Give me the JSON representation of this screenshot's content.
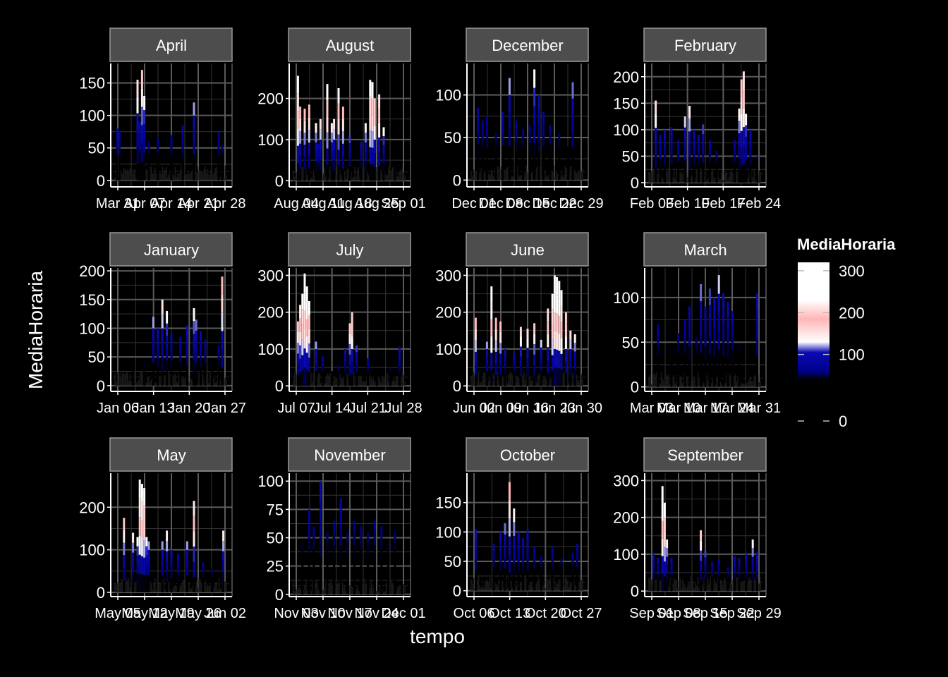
{
  "chart_data": {
    "type": "line",
    "title": "",
    "xlabel": "tempo",
    "ylabel": "MediaHoraria",
    "legend": {
      "title": "MediaHoraria",
      "position": "right",
      "ticks": [
        0,
        100,
        200,
        300
      ],
      "range": [
        0,
        320
      ],
      "colors": [
        {
          "v": 0,
          "c": "#000000"
        },
        {
          "v": 40,
          "c": "#000000"
        },
        {
          "v": 60,
          "c": "#00008b"
        },
        {
          "v": 105,
          "c": "#0a0ab4"
        },
        {
          "v": 130,
          "c": "#ffffff"
        },
        {
          "v": 185,
          "c": "#ffb6b6"
        },
        {
          "v": 230,
          "c": "#ffffff"
        },
        {
          "v": 320,
          "c": "#ffffff"
        }
      ]
    },
    "grid": true,
    "panels": [
      {
        "name": "April",
        "ylim": [
          -10,
          180
        ],
        "yticks": [
          0,
          50,
          100,
          150
        ],
        "xticks": [
          "Mar 31",
          "Apr 07",
          "Apr 14",
          "Apr 21",
          "Apr 28"
        ],
        "spikes": [
          [
            0.02,
            80
          ],
          [
            0.04,
            75
          ],
          [
            0.2,
            155
          ],
          [
            0.22,
            90
          ],
          [
            0.24,
            170
          ],
          [
            0.26,
            130
          ],
          [
            0.3,
            60
          ],
          [
            0.38,
            65
          ],
          [
            0.5,
            70
          ],
          [
            0.6,
            85
          ],
          [
            0.7,
            120
          ],
          [
            0.92,
            75
          ],
          [
            0.95,
            55
          ]
        ]
      },
      {
        "name": "August",
        "ylim": [
          -15,
          285
        ],
        "yticks": [
          0,
          100,
          200
        ],
        "xticks": [
          "Aug 04",
          "Aug 11",
          "Aug 18",
          "Aug 25",
          "Sep 01"
        ],
        "spikes": [
          [
            0.04,
            255
          ],
          [
            0.06,
            180
          ],
          [
            0.1,
            175
          ],
          [
            0.14,
            185
          ],
          [
            0.2,
            140
          ],
          [
            0.22,
            90
          ],
          [
            0.24,
            150
          ],
          [
            0.3,
            235
          ],
          [
            0.34,
            140
          ],
          [
            0.36,
            150
          ],
          [
            0.4,
            225
          ],
          [
            0.44,
            180
          ],
          [
            0.5,
            110
          ],
          [
            0.6,
            95
          ],
          [
            0.64,
            140
          ],
          [
            0.68,
            245
          ],
          [
            0.7,
            240
          ],
          [
            0.72,
            200
          ],
          [
            0.76,
            210
          ],
          [
            0.8,
            130
          ],
          [
            0.9,
            40
          ]
        ]
      },
      {
        "name": "December",
        "ylim": [
          -8,
          137
        ],
        "yticks": [
          0,
          50,
          100
        ],
        "xticks": [
          "Dec 01",
          "Dec 08",
          "Dec 15",
          "Dec 22",
          "Dec 29"
        ],
        "spikes": [
          [
            0.06,
            85
          ],
          [
            0.1,
            70
          ],
          [
            0.14,
            75
          ],
          [
            0.22,
            55
          ],
          [
            0.28,
            80
          ],
          [
            0.34,
            120
          ],
          [
            0.4,
            70
          ],
          [
            0.46,
            60
          ],
          [
            0.52,
            65
          ],
          [
            0.56,
            130
          ],
          [
            0.6,
            100
          ],
          [
            0.64,
            80
          ],
          [
            0.7,
            65
          ],
          [
            0.78,
            55
          ],
          [
            0.86,
            40
          ],
          [
            0.9,
            115
          ]
        ]
      },
      {
        "name": "February",
        "ylim": [
          -8,
          225
        ],
        "yticks": [
          0,
          50,
          100,
          150,
          200
        ],
        "xticks": [
          "Feb 03",
          "Feb 10",
          "Feb 17",
          "Feb 24"
        ],
        "spikes": [
          [
            0.06,
            155
          ],
          [
            0.1,
            90
          ],
          [
            0.14,
            100
          ],
          [
            0.2,
            105
          ],
          [
            0.26,
            80
          ],
          [
            0.32,
            125
          ],
          [
            0.36,
            145
          ],
          [
            0.4,
            100
          ],
          [
            0.44,
            90
          ],
          [
            0.48,
            110
          ],
          [
            0.54,
            80
          ],
          [
            0.6,
            60
          ],
          [
            0.76,
            80
          ],
          [
            0.8,
            140
          ],
          [
            0.82,
            195
          ],
          [
            0.84,
            210
          ],
          [
            0.86,
            130
          ],
          [
            0.9,
            100
          ],
          [
            0.96,
            50
          ]
        ]
      },
      {
        "name": "January",
        "ylim": [
          -10,
          205
        ],
        "yticks": [
          0,
          50,
          100,
          150,
          200
        ],
        "xticks": [
          "Jan 06",
          "Jan 13",
          "Jan 20",
          "Jan 27"
        ],
        "spikes": [
          [
            0.16,
            30
          ],
          [
            0.26,
            45
          ],
          [
            0.34,
            120
          ],
          [
            0.38,
            100
          ],
          [
            0.42,
            150
          ],
          [
            0.46,
            130
          ],
          [
            0.5,
            90
          ],
          [
            0.58,
            85
          ],
          [
            0.64,
            105
          ],
          [
            0.7,
            135
          ],
          [
            0.72,
            115
          ],
          [
            0.76,
            95
          ],
          [
            0.8,
            80
          ],
          [
            0.86,
            40
          ],
          [
            0.92,
            70
          ],
          [
            0.95,
            190
          ]
        ]
      },
      {
        "name": "July",
        "ylim": [
          -15,
          320
        ],
        "yticks": [
          0,
          100,
          200,
          300
        ],
        "xticks": [
          "Jul 07",
          "Jul 14",
          "Jul 21",
          "Jul 28"
        ],
        "spikes": [
          [
            0.04,
            175
          ],
          [
            0.06,
            220
          ],
          [
            0.08,
            250
          ],
          [
            0.1,
            305
          ],
          [
            0.12,
            270
          ],
          [
            0.14,
            230
          ],
          [
            0.2,
            120
          ],
          [
            0.26,
            80
          ],
          [
            0.34,
            40
          ],
          [
            0.4,
            55
          ],
          [
            0.46,
            100
          ],
          [
            0.5,
            170
          ],
          [
            0.52,
            200
          ],
          [
            0.56,
            110
          ],
          [
            0.66,
            75
          ],
          [
            0.74,
            40
          ],
          [
            0.86,
            50
          ],
          [
            0.94,
            105
          ]
        ]
      },
      {
        "name": "June",
        "ylim": [
          -15,
          320
        ],
        "yticks": [
          0,
          100,
          200,
          300
        ],
        "xticks": [
          "Jun 02",
          "Jun 09",
          "Jun 16",
          "Jun 23",
          "Jun 30"
        ],
        "spikes": [
          [
            0.04,
            185
          ],
          [
            0.14,
            120
          ],
          [
            0.18,
            270
          ],
          [
            0.22,
            185
          ],
          [
            0.26,
            175
          ],
          [
            0.3,
            100
          ],
          [
            0.38,
            90
          ],
          [
            0.44,
            160
          ],
          [
            0.5,
            155
          ],
          [
            0.56,
            170
          ],
          [
            0.62,
            125
          ],
          [
            0.68,
            210
          ],
          [
            0.72,
            250
          ],
          [
            0.74,
            300
          ],
          [
            0.76,
            295
          ],
          [
            0.78,
            285
          ],
          [
            0.8,
            260
          ],
          [
            0.84,
            200
          ],
          [
            0.88,
            150
          ],
          [
            0.92,
            140
          ]
        ]
      },
      {
        "name": "March",
        "ylim": [
          -5,
          133
        ],
        "yticks": [
          0,
          50,
          100
        ],
        "xticks": [
          "Mar 03",
          "Mar 10",
          "Mar 17",
          "Mar 24",
          "Mar 31"
        ],
        "spikes": [
          [
            0.08,
            70
          ],
          [
            0.2,
            45
          ],
          [
            0.26,
            60
          ],
          [
            0.32,
            75
          ],
          [
            0.36,
            90
          ],
          [
            0.42,
            55
          ],
          [
            0.46,
            115
          ],
          [
            0.5,
            90
          ],
          [
            0.54,
            110
          ],
          [
            0.58,
            100
          ],
          [
            0.62,
            125
          ],
          [
            0.66,
            105
          ],
          [
            0.7,
            95
          ],
          [
            0.74,
            85
          ],
          [
            0.8,
            45
          ],
          [
            0.96,
            105
          ]
        ]
      },
      {
        "name": "May",
        "ylim": [
          -10,
          280
        ],
        "yticks": [
          0,
          100,
          200
        ],
        "xticks": [
          "May 05",
          "May 12",
          "May 19",
          "May 26",
          "Jun 02"
        ],
        "spikes": [
          [
            0.08,
            175
          ],
          [
            0.16,
            140
          ],
          [
            0.2,
            130
          ],
          [
            0.22,
            265
          ],
          [
            0.24,
            255
          ],
          [
            0.26,
            245
          ],
          [
            0.28,
            130
          ],
          [
            0.3,
            120
          ],
          [
            0.42,
            120
          ],
          [
            0.46,
            145
          ],
          [
            0.5,
            100
          ],
          [
            0.56,
            90
          ],
          [
            0.64,
            120
          ],
          [
            0.7,
            215
          ],
          [
            0.78,
            70
          ],
          [
            0.86,
            55
          ],
          [
            0.96,
            145
          ]
        ]
      },
      {
        "name": "November",
        "ylim": [
          -2,
          107
        ],
        "yticks": [
          0,
          25,
          50,
          75,
          100
        ],
        "xticks": [
          "Nov 03",
          "Nov 10",
          "Nov 17",
          "Nov 24",
          "Dec 01"
        ],
        "spikes": [
          [
            0.08,
            45
          ],
          [
            0.14,
            75
          ],
          [
            0.18,
            60
          ],
          [
            0.24,
            100
          ],
          [
            0.3,
            55
          ],
          [
            0.36,
            65
          ],
          [
            0.42,
            85
          ],
          [
            0.48,
            55
          ],
          [
            0.54,
            65
          ],
          [
            0.6,
            60
          ],
          [
            0.66,
            55
          ],
          [
            0.72,
            65
          ],
          [
            0.78,
            60
          ],
          [
            0.84,
            45
          ],
          [
            0.9,
            55
          ],
          [
            0.96,
            10
          ]
        ]
      },
      {
        "name": "October",
        "ylim": [
          -10,
          200
        ],
        "yticks": [
          0,
          50,
          100,
          150
        ],
        "xticks": [
          "Oct 06",
          "Oct 13",
          "Oct 20",
          "Oct 27"
        ],
        "spikes": [
          [
            0.04,
            105
          ],
          [
            0.2,
            80
          ],
          [
            0.26,
            100
          ],
          [
            0.3,
            115
          ],
          [
            0.34,
            185
          ],
          [
            0.38,
            140
          ],
          [
            0.42,
            100
          ],
          [
            0.46,
            90
          ],
          [
            0.5,
            105
          ],
          [
            0.56,
            75
          ],
          [
            0.62,
            60
          ],
          [
            0.72,
            75
          ],
          [
            0.8,
            55
          ],
          [
            0.9,
            65
          ],
          [
            0.94,
            80
          ]
        ]
      },
      {
        "name": "September",
        "ylim": [
          -15,
          320
        ],
        "yticks": [
          0,
          100,
          200,
          300
        ],
        "xticks": [
          "Sep 01",
          "Sep 08",
          "Sep 15",
          "Sep 22",
          "Sep 29"
        ],
        "spikes": [
          [
            0.04,
            100
          ],
          [
            0.08,
            90
          ],
          [
            0.12,
            285
          ],
          [
            0.14,
            240
          ],
          [
            0.16,
            140
          ],
          [
            0.2,
            90
          ],
          [
            0.46,
            165
          ],
          [
            0.5,
            110
          ],
          [
            0.56,
            80
          ],
          [
            0.62,
            85
          ],
          [
            0.7,
            65
          ],
          [
            0.76,
            95
          ],
          [
            0.8,
            90
          ],
          [
            0.86,
            100
          ],
          [
            0.92,
            140
          ],
          [
            0.96,
            105
          ]
        ]
      }
    ]
  }
}
